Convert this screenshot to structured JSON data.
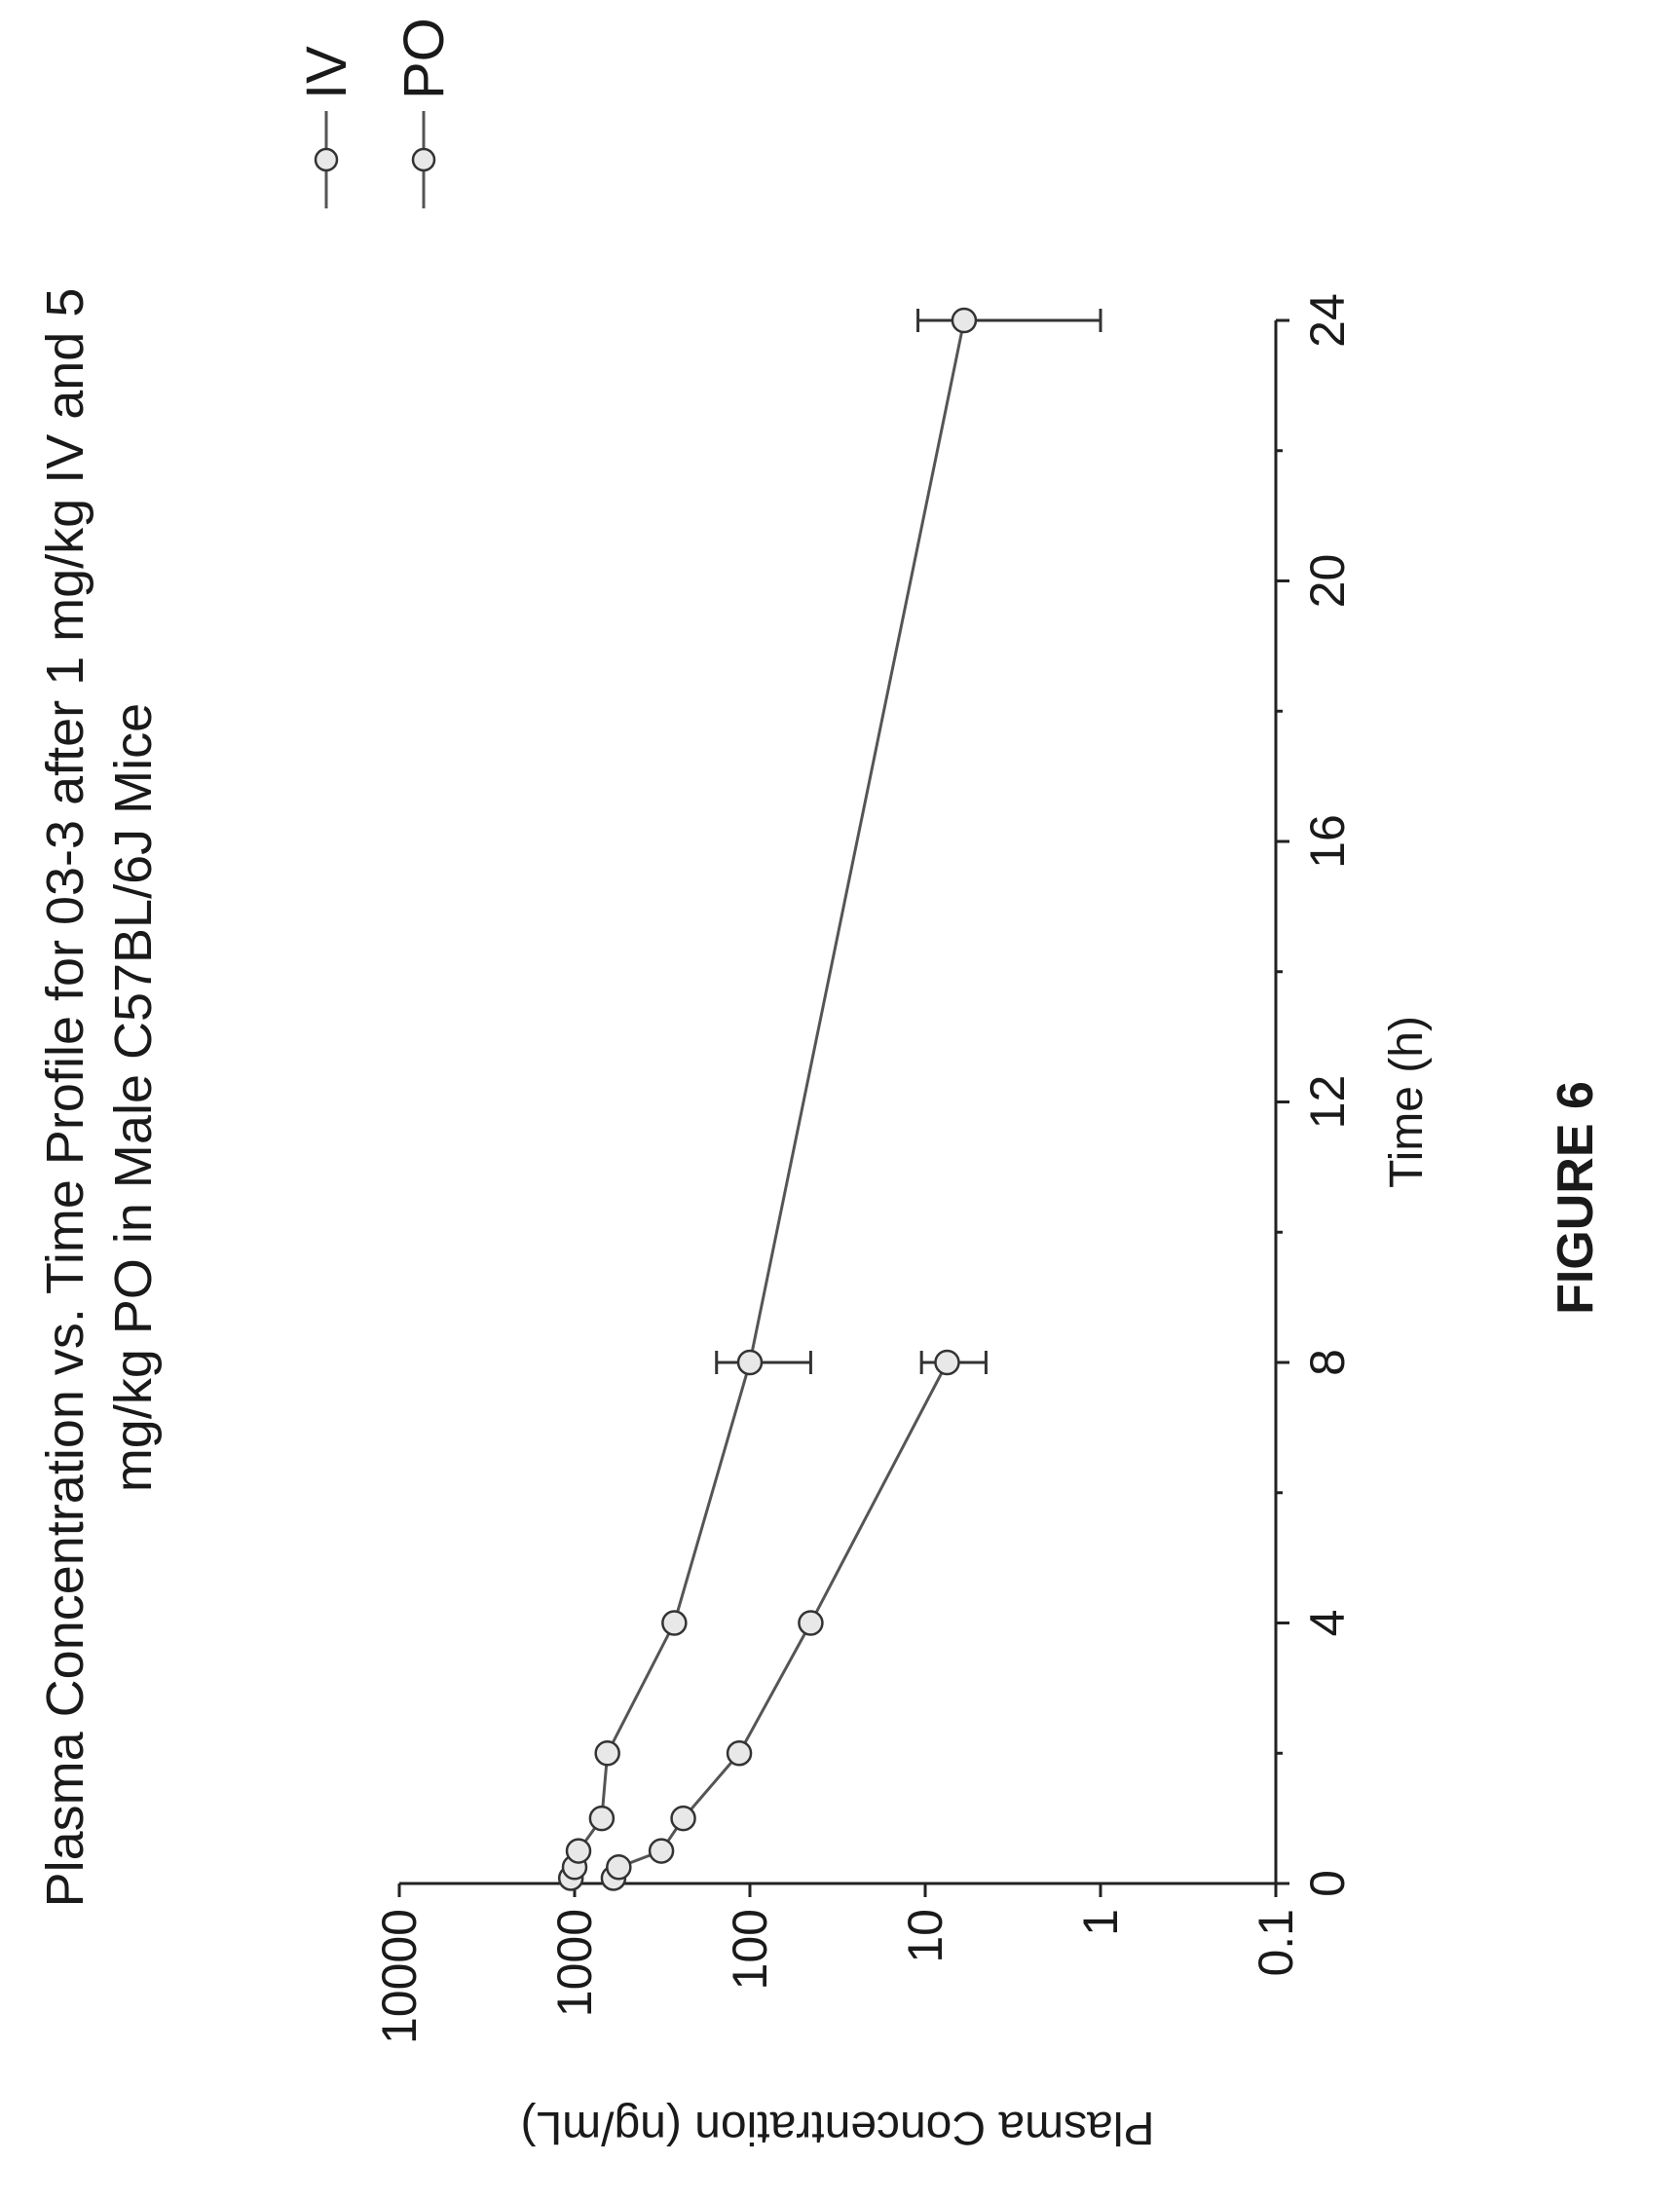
{
  "figure_label": "FIGURE 6",
  "chart_data": {
    "type": "line",
    "title_lines": [
      "Plasma Concentration vs. Time Profile for 03-3 after 1 mg/kg IV and 5",
      "mg/kg PO in Male C57BL/6J Mice"
    ],
    "xlabel": "Time (h)",
    "ylabel": "Plasma Concentration (ng/mL)",
    "xlim": [
      0,
      24
    ],
    "ylim": [
      0.1,
      10000
    ],
    "yscale": "log",
    "x_ticks": [
      "0",
      "4",
      "8",
      "12",
      "16",
      "20",
      "24"
    ],
    "y_ticks": [
      "0.1",
      "1",
      "10",
      "100",
      "1000",
      "10000"
    ],
    "grid": false,
    "legend_position": "top-right",
    "series": [
      {
        "name": "IV",
        "points": [
          {
            "x": 0.083,
            "y": 1050,
            "err": 0
          },
          {
            "x": 0.25,
            "y": 1000,
            "err": 0
          },
          {
            "x": 0.5,
            "y": 950,
            "err": 0
          },
          {
            "x": 1,
            "y": 700,
            "err": 0
          },
          {
            "x": 2,
            "y": 650,
            "err": 0
          },
          {
            "x": 4,
            "y": 270,
            "err": 0
          },
          {
            "x": 8,
            "y": 100,
            "err": 55
          },
          {
            "x": 24,
            "y": 6,
            "err": 5
          }
        ]
      },
      {
        "name": "PO",
        "points": [
          {
            "x": 0.083,
            "y": 600,
            "err": 0
          },
          {
            "x": 0.25,
            "y": 560,
            "err": 0
          },
          {
            "x": 0.5,
            "y": 320,
            "err": 0
          },
          {
            "x": 1,
            "y": 240,
            "err": 0
          },
          {
            "x": 2,
            "y": 115,
            "err": 0
          },
          {
            "x": 4,
            "y": 45,
            "err": 0
          },
          {
            "x": 8,
            "y": 7.5,
            "err": 3
          }
        ]
      }
    ]
  }
}
